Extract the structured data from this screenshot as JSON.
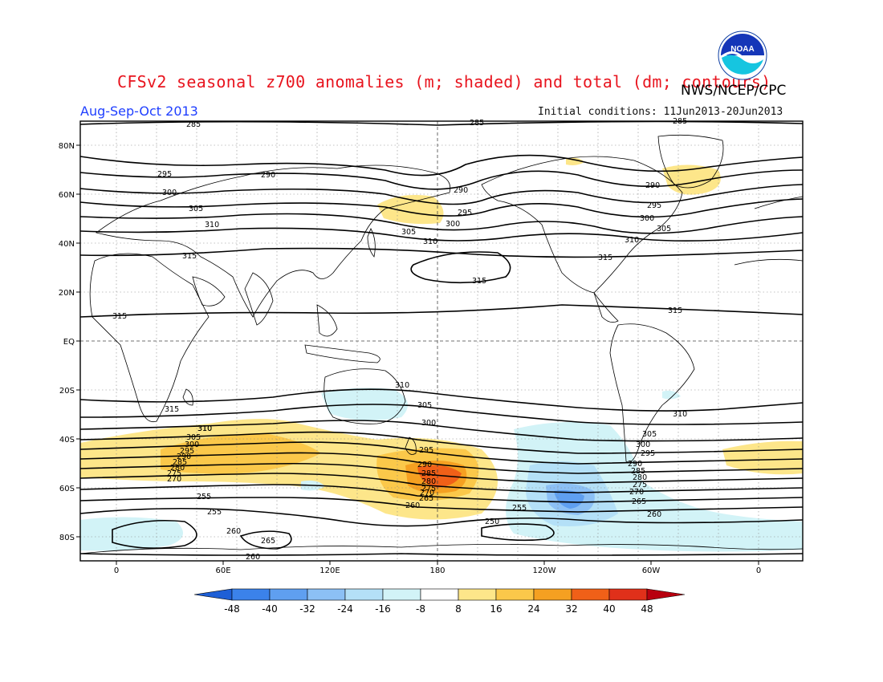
{
  "header": {
    "title": "CFSv2 seasonal z700 anomalies (m; shaded) and total (dm; contours)",
    "agency": "NWS/NCEP/CPC",
    "season": "Aug-Sep-Oct 2013",
    "initial_conditions": "Initial conditions: 11Jun2013-20Jun2013",
    "logo_text": "NOAA"
  },
  "axes": {
    "lat_labels": [
      "80N",
      "60N",
      "40N",
      "20N",
      "EQ",
      "20S",
      "40S",
      "60S",
      "80S"
    ],
    "lon_labels": [
      "0",
      "60E",
      "120E",
      "180",
      "120W",
      "60W",
      "0"
    ]
  },
  "contour_labels": [
    {
      "text": "285"
    },
    {
      "text": "285"
    },
    {
      "text": "285"
    },
    {
      "text": "290"
    },
    {
      "text": "290"
    },
    {
      "text": "290"
    },
    {
      "text": "295"
    },
    {
      "text": "295"
    },
    {
      "text": "295"
    },
    {
      "text": "300"
    },
    {
      "text": "300"
    },
    {
      "text": "300"
    },
    {
      "text": "305"
    },
    {
      "text": "305"
    },
    {
      "text": "305"
    },
    {
      "text": "310"
    },
    {
      "text": "310"
    },
    {
      "text": "310"
    },
    {
      "text": "310"
    },
    {
      "text": "315"
    },
    {
      "text": "315"
    },
    {
      "text": "315"
    },
    {
      "text": "315"
    },
    {
      "text": "315"
    },
    {
      "text": "310"
    },
    {
      "text": "305"
    },
    {
      "text": "300"
    },
    {
      "text": "295"
    },
    {
      "text": "290"
    },
    {
      "text": "285"
    },
    {
      "text": "280"
    },
    {
      "text": "275"
    },
    {
      "text": "270"
    },
    {
      "text": "265"
    },
    {
      "text": "260"
    },
    {
      "text": "255"
    },
    {
      "text": "255"
    },
    {
      "text": "260"
    },
    {
      "text": "265"
    },
    {
      "text": "260"
    },
    {
      "text": "250"
    },
    {
      "text": "255"
    },
    {
      "text": "260"
    },
    {
      "text": "265"
    },
    {
      "text": "270"
    },
    {
      "text": "275"
    },
    {
      "text": "280"
    },
    {
      "text": "285"
    },
    {
      "text": "290"
    },
    {
      "text": "295"
    },
    {
      "text": "300"
    },
    {
      "text": "305"
    },
    {
      "text": "310"
    },
    {
      "text": "315"
    },
    {
      "text": "310"
    },
    {
      "text": "305"
    },
    {
      "text": "300"
    },
    {
      "text": "295"
    },
    {
      "text": "290"
    },
    {
      "text": "285"
    },
    {
      "text": "280"
    },
    {
      "text": "275"
    },
    {
      "text": "270"
    },
    {
      "text": "265"
    },
    {
      "text": "260"
    },
    {
      "text": "255"
    }
  ],
  "colorbar": {
    "labels": [
      "-48",
      "-40",
      "-32",
      "-24",
      "-16",
      "-8",
      "8",
      "16",
      "24",
      "32",
      "40",
      "48"
    ],
    "colors": [
      "#1e5fd6",
      "#3b82ea",
      "#5f9ff0",
      "#8cc0f5",
      "#b4e0f7",
      "#d2f3f7",
      "#ffffff",
      "#fde68a",
      "#fbc84a",
      "#f5a021",
      "#f06018",
      "#e0301a",
      "#b8000f"
    ]
  },
  "colors": {
    "title": "#e8141e",
    "season": "#1f3fff"
  }
}
